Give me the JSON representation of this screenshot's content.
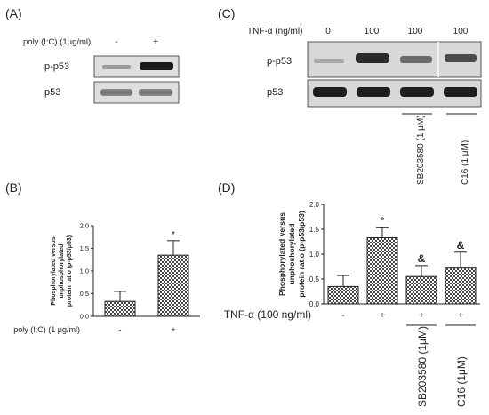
{
  "panels": {
    "a": {
      "label": "(A)",
      "condition_label": "poly (I:C) (1μg/ml)",
      "lanes": [
        "-",
        "+"
      ],
      "blots": [
        "p-p53",
        "p53"
      ]
    },
    "c": {
      "label": "(C)",
      "condition_label": "TNF-α (ng/ml)",
      "lanes": [
        "0",
        "100",
        "100",
        "100"
      ],
      "blots": [
        "p-p53",
        "p53"
      ],
      "inhibitors": [
        "SB203580 (1 μM)",
        "C16 (1 μM)"
      ]
    },
    "b": {
      "label": "(B)"
    },
    "d": {
      "label": "(D)"
    }
  },
  "chart_data": [
    {
      "type": "bar",
      "panel": "B",
      "categories": [
        "-",
        "+"
      ],
      "values": [
        0.33,
        1.35
      ],
      "errors": [
        0.22,
        0.32
      ],
      "significance": [
        "",
        "*"
      ],
      "xlabel": "poly (I:C) (1 μg/ml)",
      "ylabel": "Phosphorylated versus unphosphorylated protein ratio (p-p53/p53)",
      "ylim": [
        0,
        2.0
      ],
      "yticks": [
        "0.0",
        "0.5",
        "1.0",
        "1.5",
        "2.0"
      ],
      "hatch": "checkered"
    },
    {
      "type": "bar",
      "panel": "D",
      "categories": [
        "-",
        "+",
        "+",
        "+"
      ],
      "values": [
        0.35,
        1.33,
        0.55,
        0.72
      ],
      "errors": [
        0.22,
        0.2,
        0.22,
        0.32
      ],
      "significance": [
        "",
        "*",
        "&",
        "&"
      ],
      "xlabel": "TNF-α (100 ng/ml)",
      "ylabel": "Phosphorylated versus unphoshorylated protein ratio (p-p53/p53)",
      "ylim": [
        0,
        2.0
      ],
      "yticks": [
        "0.0",
        "0.5",
        "1.0",
        "1.5",
        "2.0"
      ],
      "inhibitors": [
        "SB203580 (1μM)",
        "C16 (1μM)"
      ],
      "hatch": "checkered"
    }
  ]
}
